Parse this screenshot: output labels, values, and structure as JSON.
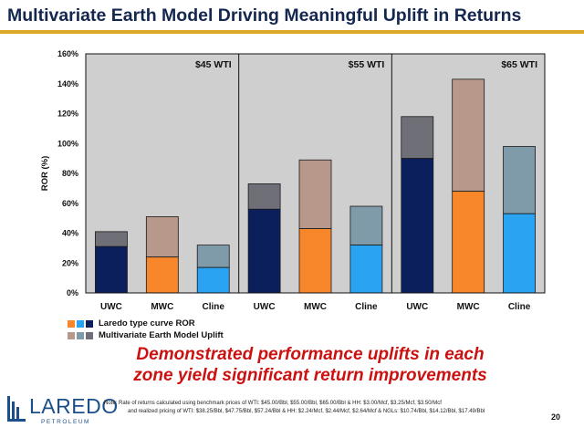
{
  "title": "Multivariate Earth Model Driving Meaningful Uplift in Returns",
  "chart_data": {
    "type": "bar",
    "stacked": true,
    "ylabel": "ROR (%)",
    "ylim": [
      0,
      160
    ],
    "yticks": [
      0,
      20,
      40,
      60,
      80,
      100,
      120,
      140,
      160
    ],
    "ytick_labels": [
      "0%",
      "20%",
      "40%",
      "60%",
      "80%",
      "100%",
      "120%",
      "140%",
      "160%"
    ],
    "groups": [
      {
        "label": "$45 WTI",
        "categories": [
          "UWC",
          "MWC",
          "Cline"
        ],
        "base": [
          31,
          24,
          17
        ],
        "uplift": [
          10,
          27,
          15
        ]
      },
      {
        "label": "$55 WTI",
        "categories": [
          "UWC",
          "MWC",
          "Cline"
        ],
        "base": [
          56,
          43,
          32
        ],
        "uplift": [
          17,
          46,
          26
        ]
      },
      {
        "label": "$65 WTI",
        "categories": [
          "UWC",
          "MWC",
          "Cline"
        ],
        "base": [
          90,
          68,
          53
        ],
        "uplift": [
          28,
          75,
          45
        ]
      }
    ],
    "series": [
      {
        "name": "Laredo type curve ROR"
      },
      {
        "name": "Multivariate Earth Model Uplift"
      }
    ],
    "colors": {
      "UWC": {
        "base": "#0b1f5c",
        "uplift": "#6f6f77"
      },
      "MWC": {
        "base": "#f7872a",
        "uplift": "#b7988a"
      },
      "Cline": {
        "base": "#2aa3f2",
        "uplift": "#7f9aa8"
      },
      "plot_bg": "#cfcfcf"
    }
  },
  "callout": {
    "line1": "Demonstrated performance uplifts in each",
    "line2": "zone yield significant return improvements"
  },
  "logo": {
    "word": "LAREDO",
    "sub": "PETROLEUM"
  },
  "note": {
    "line1": "Note: Rate of returns calculated using benchmark prices of WTI: $45.00/Bbl, $55.00/Bbl, $65.00/Bbl & HH: $3.00/Mcf, $3.25/Mcf, $3.50/Mcf",
    "line2": "and realized pricing of WTI: $38.25/Bbl, $47.75/Bbl, $57.24/Bbl & HH: $2.24/Mcf, $2.44/Mcf, $2.64/Mcf & NGLs: $10.74/Bbl, $14.12/Bbl, $17.49/Bbl"
  },
  "page_number": "20"
}
